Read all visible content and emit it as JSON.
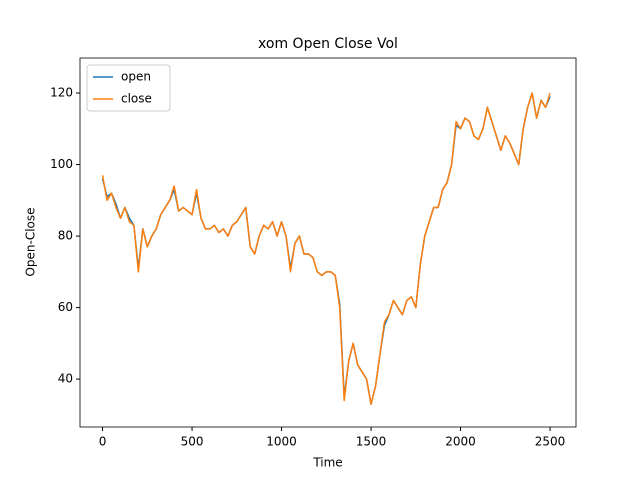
{
  "chart_data": {
    "type": "line",
    "title": "xom Open Close Vol",
    "xlabel": "Time",
    "ylabel": "Open-Close",
    "x": [
      0,
      25,
      50,
      75,
      100,
      125,
      150,
      175,
      200,
      225,
      250,
      275,
      300,
      325,
      350,
      375,
      400,
      425,
      450,
      475,
      500,
      525,
      550,
      575,
      600,
      625,
      650,
      675,
      700,
      725,
      750,
      775,
      800,
      825,
      850,
      875,
      900,
      925,
      950,
      975,
      1000,
      1025,
      1050,
      1075,
      1100,
      1125,
      1150,
      1175,
      1200,
      1225,
      1250,
      1275,
      1300,
      1325,
      1350,
      1375,
      1400,
      1425,
      1450,
      1475,
      1500,
      1525,
      1550,
      1575,
      1600,
      1625,
      1650,
      1675,
      1700,
      1725,
      1750,
      1775,
      1800,
      1825,
      1850,
      1875,
      1900,
      1925,
      1950,
      1975,
      2000,
      2025,
      2050,
      2075,
      2100,
      2125,
      2150,
      2175,
      2200,
      2225,
      2250,
      2275,
      2300,
      2325,
      2350,
      2375,
      2400,
      2425,
      2450,
      2475,
      2500
    ],
    "series": [
      {
        "name": "open",
        "color": "#1f77b4",
        "values": [
          96,
          91,
          92,
          89,
          85,
          88,
          85,
          83,
          71,
          82,
          77,
          80,
          82,
          86,
          88,
          90,
          93,
          87,
          88,
          87,
          86,
          92,
          85,
          82,
          82,
          83,
          81,
          82,
          80,
          83,
          84,
          86,
          88,
          77,
          75,
          80,
          83,
          82,
          84,
          80,
          84,
          80,
          71,
          78,
          80,
          75,
          75,
          74,
          70,
          69,
          70,
          70,
          69,
          61,
          35,
          45,
          50,
          44,
          42,
          40,
          33,
          38,
          47,
          55,
          58,
          62,
          60,
          58,
          62,
          63,
          60,
          72,
          80,
          84,
          88,
          88,
          93,
          95,
          100,
          111,
          110,
          113,
          112,
          108,
          107,
          110,
          116,
          112,
          108,
          104,
          108,
          106,
          103,
          100,
          110,
          116,
          120,
          113,
          118,
          116,
          119
        ]
      },
      {
        "name": "close",
        "color": "#ff7f0e",
        "values": [
          97,
          90,
          92,
          88,
          85,
          88,
          84,
          83,
          70,
          82,
          77,
          80,
          82,
          86,
          88,
          90,
          94,
          87,
          88,
          87,
          86,
          93,
          85,
          82,
          82,
          83,
          81,
          82,
          80,
          83,
          84,
          86,
          88,
          77,
          75,
          80,
          83,
          82,
          84,
          80,
          84,
          80,
          70,
          78,
          80,
          75,
          75,
          74,
          70,
          69,
          70,
          70,
          69,
          60,
          34,
          45,
          50,
          44,
          42,
          40,
          33,
          38,
          47,
          56,
          58,
          62,
          60,
          58,
          62,
          63,
          60,
          72,
          80,
          84,
          88,
          88,
          93,
          95,
          100,
          112,
          110,
          113,
          112,
          108,
          107,
          110,
          116,
          112,
          108,
          104,
          108,
          106,
          103,
          100,
          110,
          116,
          120,
          113,
          118,
          116,
          120
        ]
      }
    ],
    "xlim": [
      -126,
      2645
    ],
    "ylim": [
      26.6,
      129.8
    ],
    "xticks": [
      0,
      500,
      1000,
      1500,
      2000,
      2500
    ],
    "yticks": [
      40,
      60,
      80,
      100,
      120
    ],
    "legend": "upper left"
  }
}
